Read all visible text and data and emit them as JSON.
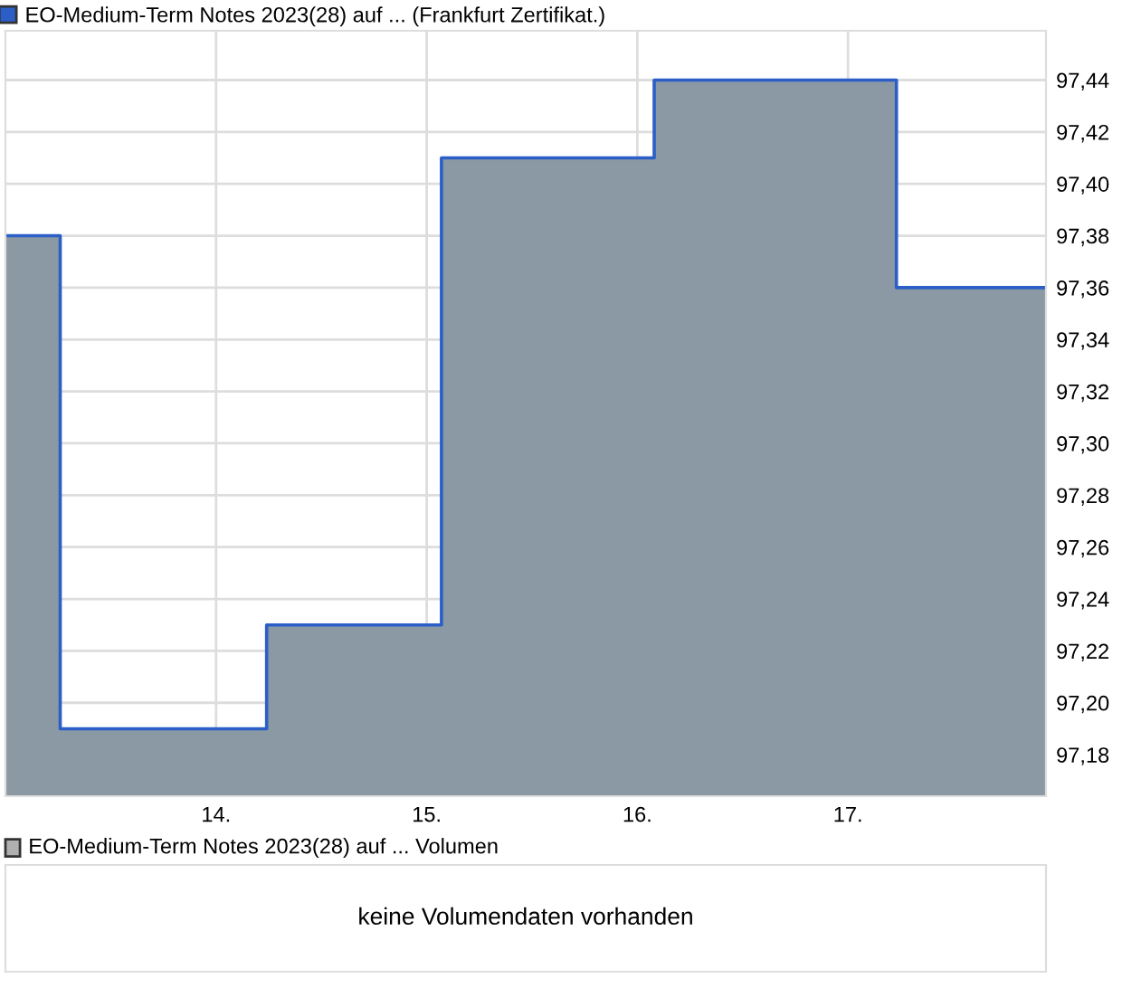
{
  "chart_data": [
    {
      "type": "step",
      "x": [
        13.0,
        13.26,
        14.24,
        15.07,
        16.08,
        17.23,
        17.94
      ],
      "series": [
        {
          "type": "area",
          "color": "#8a99a3",
          "values": [
            97.38,
            97.19,
            97.23,
            97.41,
            97.44,
            97.36,
            97.36
          ]
        },
        {
          "type": "step",
          "name": "EO-Medium-Term Notes 2023(28) auf ... (Frankfurt Zertifikat.)",
          "color": "#2b5fc7",
          "values": [
            97.38,
            97.19,
            97.23,
            97.41,
            97.44,
            97.36,
            97.36
          ]
        }
      ],
      "xlim": [
        13.0,
        17.94
      ],
      "ylim": [
        97.164,
        97.459
      ],
      "xticks": [
        {
          "value": 14,
          "label": "14."
        },
        {
          "value": 15,
          "label": "15."
        },
        {
          "value": 16,
          "label": "16."
        },
        {
          "value": 17,
          "label": "17."
        }
      ],
      "yticks": [
        {
          "value": 97.18,
          "label": "97,18"
        },
        {
          "value": 97.2,
          "label": "97,20"
        },
        {
          "value": 97.22,
          "label": "97,22"
        },
        {
          "value": 97.24,
          "label": "97,24"
        },
        {
          "value": 97.26,
          "label": "97,26"
        },
        {
          "value": 97.28,
          "label": "97,28"
        },
        {
          "value": 97.3,
          "label": "97,30"
        },
        {
          "value": 97.32,
          "label": "97,32"
        },
        {
          "value": 97.34,
          "label": "97,34"
        },
        {
          "value": 97.36,
          "label": "97,36"
        },
        {
          "value": 97.38,
          "label": "97,38"
        },
        {
          "value": 97.4,
          "label": "97,40"
        },
        {
          "value": 97.42,
          "label": "97,42"
        },
        {
          "value": 97.44,
          "label": "97,44"
        }
      ],
      "grid": true,
      "legend": "top left"
    },
    {
      "type": "other",
      "title": "EO-Medium-Term Notes 2023(28) auf ... Volumen",
      "annotations": [
        "keine Volumendaten vorhanden"
      ]
    }
  ]
}
